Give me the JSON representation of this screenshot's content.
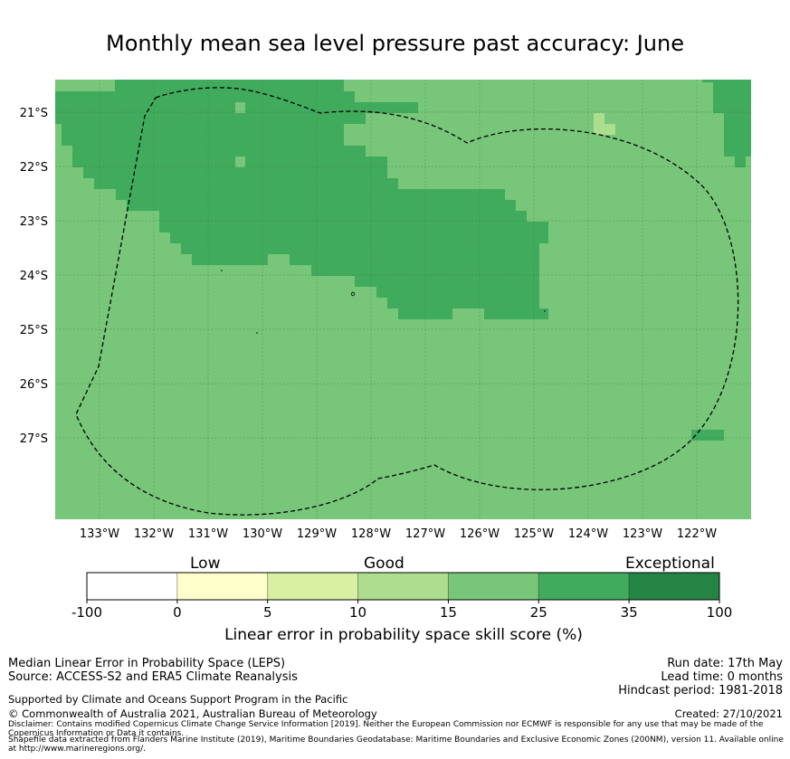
{
  "title": "Monthly mean sea level pressure past accuracy: June",
  "map": {
    "lat_labels": [
      "21°S",
      "22°S",
      "23°S",
      "24°S",
      "25°S",
      "26°S",
      "27°S"
    ],
    "lon_labels": [
      "133°W",
      "132°W",
      "131°W",
      "130°W",
      "129°W",
      "128°W",
      "127°W",
      "126°W",
      "125°W",
      "124°W",
      "123°W",
      "122°W"
    ],
    "colors": {
      "cat_15_25": "#78c679",
      "cat_25_35": "#41ab5d",
      "cat_10_15": "#addd8e"
    }
  },
  "colorbar": {
    "category_labels": {
      "low": "Low",
      "good": "Good",
      "exceptional": "Exceptional"
    },
    "ticks": [
      "-100",
      "0",
      "5",
      "10",
      "15",
      "25",
      "35",
      "100"
    ],
    "colors": [
      "#ffffff",
      "#ffffcc",
      "#d9f0a3",
      "#addd8e",
      "#78c679",
      "#41ab5d",
      "#238443"
    ],
    "label": "Linear error in probability space skill score (%)"
  },
  "footer": {
    "left1": "Median Linear Error in Probability Space (LEPS)",
    "left2": "Source: ACCESS-S2 and ERA5 Climate Reanalysis",
    "right1": "Run date: 17th May",
    "right2": "Lead time: 0 months",
    "right3": "Hindcast period: 1981-2018",
    "support": "Supported by Climate and Oceans Support Program in the Pacific",
    "copyright": "© Commonwealth of Australia 2021, Australian Bureau of Meteorology",
    "created": "Created: 27/10/2021",
    "disclaimer": "Disclaimer: Contains modified Copernicus Climate Change Service Information [2019]. Neither the European Commission nor ECMWF is responsible for any use that may be made of the Copernicus Information or Data it contains.",
    "shapefile": "Shapefile data extracted from Flanders Marine Institute (2019), Maritime Boundaries Geodatabase: Maritime Boundaries and Exclusive Economic Zones (200NM), version 11. Available online at http://www.marineregions.org/."
  }
}
